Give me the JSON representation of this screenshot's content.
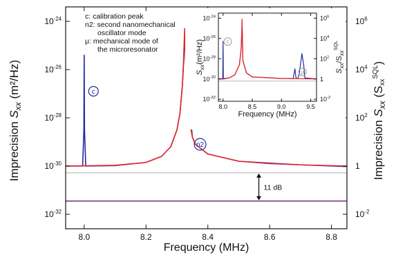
{
  "chart_data": [
    {
      "type": "line",
      "xlabel": "Frequency (MHz)",
      "ylabel_left": {
        "prefix": "Imprecision",
        "var": "S",
        "sub": "xx",
        "units": "(m²/Hz)"
      },
      "ylabel_right": {
        "prefix": "Imprecision",
        "var": "S",
        "sub": "xx",
        "units_prefix": "(S",
        "units_sub": "xx",
        "units_sup": "SQL",
        "units_suffix": ")"
      },
      "xlim": [
        7.94,
        8.85
      ],
      "ylim_log10": [
        -32.6,
        -23.4
      ],
      "y_scale": "log",
      "x_ticks": [
        "8.0",
        "8.2",
        "8.4",
        "8.6",
        "8.8"
      ],
      "x_tick_values": [
        8.0,
        8.2,
        8.4,
        8.6,
        8.8
      ],
      "y_ticks_left": [
        {
          "exp": "-24",
          "value_log10": -24
        },
        {
          "exp": "-26",
          "value_log10": -26
        },
        {
          "exp": "-28",
          "value_log10": -28
        },
        {
          "exp": "-30",
          "value_log10": -30
        },
        {
          "exp": "-32",
          "value_log10": -32
        }
      ],
      "y_ticks_right": [
        {
          "base": "10",
          "exp": "6",
          "value_log10": -24
        },
        {
          "base": "10",
          "exp": "4",
          "value_log10": -26
        },
        {
          "base": "10",
          "exp": "2",
          "value_log10": -28
        },
        {
          "base": "1",
          "exp": "",
          "value_log10": -30
        },
        {
          "base": "10",
          "exp": "-2",
          "value_log10": -32
        }
      ],
      "legend_text": [
        "c:  calibration peak",
        "n2: second nanomechanical",
        "oscillator mode",
        "μ:  mechanical mode of",
        "the microresonator"
      ],
      "annotations": [
        {
          "label": "c",
          "x": 8.03,
          "y_log10": -26.9
        },
        {
          "label": "n2",
          "x": 8.375,
          "y_log10": -29.1
        },
        {
          "label": "11 dB",
          "x": 8.585,
          "y_log10": -30.9
        }
      ],
      "series": [
        {
          "name": "",
          "color": "#1f2a9c",
          "x": [
            7.94,
            7.995,
            7.999,
            8.0,
            8.001,
            8.005,
            8.1,
            8.2,
            8.25,
            8.28,
            8.3,
            8.31,
            8.318,
            8.322,
            8.325,
            8.328,
            8.332,
            8.34,
            8.343,
            8.344,
            8.345,
            8.346,
            8.347,
            8.35,
            8.36,
            8.4,
            8.5,
            8.6,
            8.7,
            8.85
          ],
          "y_log10": [
            -30.0,
            -30.0,
            -28.5,
            -25.4,
            -28.5,
            -30.0,
            -29.98,
            -29.85,
            -29.6,
            -29.2,
            -28.5,
            -27.8,
            -26.6,
            -25.6,
            -24.5,
            -25.6,
            -26.9,
            -28.2,
            -27.8,
            -26.8,
            -27.8,
            -28.3,
            -28.4,
            -28.8,
            -29.1,
            -29.5,
            -29.8,
            -29.88,
            -29.95,
            -30.02
          ]
        },
        {
          "name": "",
          "color": "#e8262b",
          "x": [
            7.94,
            8.0,
            8.1,
            8.2,
            8.25,
            8.28,
            8.3,
            8.31,
            8.318,
            8.322,
            8.325,
            8.328,
            8.332,
            8.34,
            8.35,
            8.36,
            8.4,
            8.5,
            8.6,
            8.7,
            8.85
          ],
          "y_log10": [
            -30.0,
            -29.99,
            -29.97,
            -29.85,
            -29.6,
            -29.2,
            -28.5,
            -27.8,
            -26.6,
            -25.4,
            -24.3,
            -25.4,
            -26.8,
            -28.1,
            -28.8,
            -29.1,
            -29.5,
            -29.8,
            -29.9,
            -29.95,
            -30.0
          ]
        },
        {
          "name": "",
          "color": "#b8b8b8",
          "x": [
            7.94,
            8.85
          ],
          "y_log10": [
            -30.28,
            -30.28
          ]
        },
        {
          "name": "",
          "color": "#7b2a84",
          "x": [
            7.94,
            8.85
          ],
          "y_log10": [
            -31.45,
            -31.45
          ]
        }
      ]
    },
    {
      "type": "line",
      "xlabel": "Frequency (MHz)",
      "ylabel_left": {
        "var": "S",
        "sub": "xx",
        "units": "(m²/Hz)"
      },
      "ylabel_right": {
        "var": "S",
        "sub": "xx",
        "slash": "/S",
        "sub2": "xx",
        "sup2": "SQL"
      },
      "xlim": [
        7.92,
        9.6
      ],
      "ylim_log10": [
        -32.2,
        -23.5
      ],
      "y_scale": "log",
      "x_ticks": [
        "8.0",
        "8.5",
        "9.0",
        "9.5"
      ],
      "x_tick_values": [
        8.0,
        8.5,
        9.0,
        9.5
      ],
      "y_ticks_left": [
        {
          "exp": "-24",
          "value_log10": -24
        },
        {
          "exp": "-26",
          "value_log10": -26
        },
        {
          "exp": "-28",
          "value_log10": -28
        },
        {
          "exp": "-30",
          "value_log10": -30
        },
        {
          "exp": "-32",
          "value_log10": -32
        }
      ],
      "y_ticks_right": [
        {
          "base": "10",
          "exp": "6",
          "value_log10": -24
        },
        {
          "base": "10",
          "exp": "4",
          "value_log10": -26
        },
        {
          "base": "10",
          "exp": "2",
          "value_log10": -28
        },
        {
          "base": "1",
          "exp": "",
          "value_log10": -30
        },
        {
          "base": "10",
          "exp": "-2",
          "value_log10": -32
        }
      ],
      "annotations": [
        {
          "label": "c",
          "x": 8.08,
          "y_log10": -26.3
        },
        {
          "label": "μ",
          "x": 9.36,
          "y_log10": -29.3
        }
      ],
      "series": [
        {
          "name": "",
          "color": "#1f2a9c",
          "x": [
            7.92,
            7.995,
            8.0,
            8.005,
            8.1,
            8.2,
            8.28,
            8.31,
            8.322,
            8.325,
            8.328,
            8.34,
            8.4,
            8.5,
            9.0,
            9.2,
            9.23,
            9.25,
            9.28,
            9.3,
            9.33,
            9.35,
            9.38,
            9.4,
            9.6
          ],
          "y_log10": [
            -30.0,
            -30.0,
            -26.3,
            -30.0,
            -29.9,
            -29.6,
            -28.6,
            -27.0,
            -25.2,
            -24.3,
            -25.2,
            -28.2,
            -29.4,
            -29.8,
            -29.95,
            -29.95,
            -29.0,
            -29.95,
            -29.95,
            -29.6,
            -28.4,
            -27.5,
            -28.6,
            -29.9,
            -30.0
          ]
        },
        {
          "name": "",
          "color": "#e8262b",
          "x": [
            7.92,
            8.1,
            8.2,
            8.28,
            8.31,
            8.322,
            8.325,
            8.328,
            8.34,
            8.4,
            8.5,
            9.0,
            9.6
          ],
          "y_log10": [
            -30.0,
            -29.9,
            -29.6,
            -28.6,
            -27.0,
            -25.0,
            -24.1,
            -25.0,
            -28.2,
            -29.4,
            -29.8,
            -29.95,
            -30.0
          ]
        },
        {
          "name": "",
          "color": "#b8b8b8",
          "x": [
            7.92,
            9.6
          ],
          "y_log10": [
            -30.2,
            -30.2
          ]
        }
      ]
    }
  ]
}
